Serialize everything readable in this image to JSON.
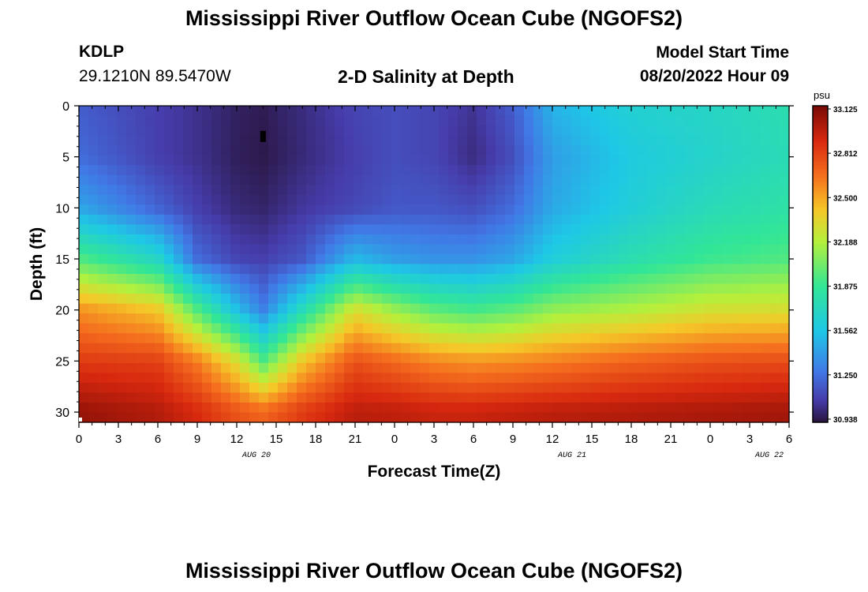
{
  "header": {
    "title": "Mississippi River Outflow Ocean Cube (NGOFS2)",
    "station_id": "KDLP",
    "station_coords": "29.1210N  89.5470W",
    "plot_title": "2-D Salinity at Depth",
    "model_start_label": "Model Start Time",
    "model_start_value": "08/20/2022 Hour 09"
  },
  "footer": {
    "repeated_title": "Mississippi River Outflow Ocean Cube (NGOFS2)"
  },
  "chart_data": {
    "type": "heatmap",
    "title": "2-D Salinity at Depth",
    "xlabel": "Forecast Time(Z)",
    "ylabel": "Depth (ft)",
    "x_tick_labels": [
      "0",
      "3",
      "6",
      "9",
      "12",
      "15",
      "18",
      "21",
      "0",
      "3",
      "6",
      "9",
      "12",
      "15",
      "18",
      "21",
      "0",
      "3",
      "6"
    ],
    "x_range_hours": [
      0,
      54
    ],
    "date_labels": [
      {
        "label": "AUG 20",
        "hour": 13.5
      },
      {
        "label": "AUG 21",
        "hour": 37.5
      },
      {
        "label": "AUG 22",
        "hour": 52.5
      }
    ],
    "y_ticks": [
      0,
      5,
      10,
      15,
      20,
      25,
      30
    ],
    "ylim": [
      0,
      31
    ],
    "y_inverted": true,
    "colorbar": {
      "unit": "psu",
      "ticks": [
        "33.125",
        "32.812",
        "32.500",
        "32.188",
        "31.875",
        "31.562",
        "31.250",
        "30.938"
      ],
      "min": 30.938,
      "max": 33.125
    },
    "value_grid": {
      "hours": [
        0,
        6,
        9,
        12,
        14,
        17,
        21,
        24,
        27,
        30,
        33,
        36,
        42,
        48,
        54
      ],
      "depths": [
        0,
        5,
        10,
        15,
        20,
        25,
        30
      ],
      "values": [
        [
          31.2,
          31.1,
          31.05,
          30.99,
          30.97,
          31.03,
          31.12,
          31.15,
          31.12,
          31.06,
          31.2,
          31.5,
          31.65,
          31.7,
          31.78
        ],
        [
          31.25,
          31.1,
          31.05,
          30.98,
          30.96,
          31.02,
          31.1,
          31.15,
          31.12,
          31.03,
          31.15,
          31.42,
          31.6,
          31.68,
          31.76
        ],
        [
          31.45,
          31.22,
          31.1,
          31.02,
          31.0,
          31.07,
          31.13,
          31.18,
          31.18,
          31.15,
          31.25,
          31.46,
          31.63,
          31.75,
          31.82
        ],
        [
          31.95,
          31.7,
          31.25,
          31.12,
          31.1,
          31.18,
          31.52,
          31.42,
          31.38,
          31.38,
          31.45,
          31.62,
          31.78,
          31.9,
          31.95
        ],
        [
          32.55,
          32.4,
          31.95,
          31.55,
          31.32,
          31.75,
          32.3,
          32.12,
          31.98,
          31.92,
          31.98,
          32.1,
          32.18,
          32.28,
          32.3
        ],
        [
          32.82,
          32.8,
          32.6,
          32.3,
          31.95,
          32.4,
          32.74,
          32.66,
          32.58,
          32.54,
          32.56,
          32.6,
          32.68,
          32.74,
          32.76
        ],
        [
          33.05,
          32.98,
          32.88,
          32.74,
          32.68,
          32.82,
          32.96,
          32.95,
          32.92,
          32.92,
          32.94,
          32.96,
          32.98,
          33.0,
          33.02
        ]
      ]
    },
    "annotations": [
      {
        "label": "marker",
        "hour": 14,
        "depth": 3
      }
    ]
  }
}
